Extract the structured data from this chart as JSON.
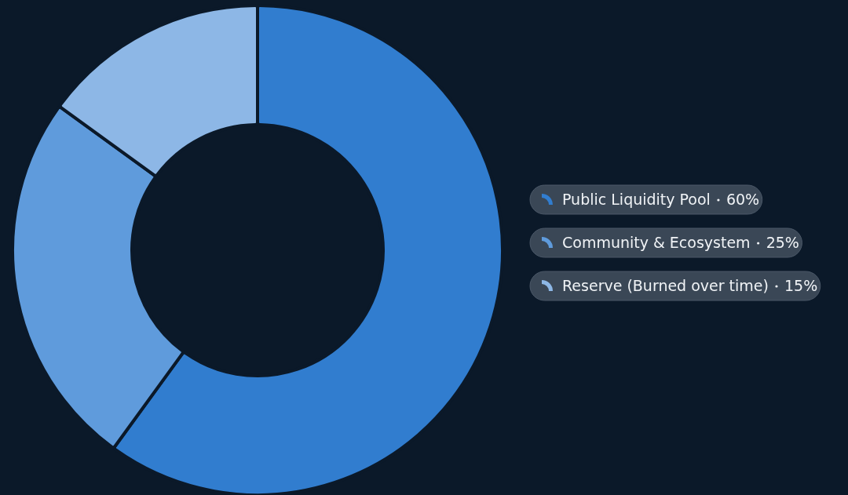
{
  "chart_data": {
    "type": "donut",
    "categories": [
      "Public Liquidity Pool",
      "Community & Ecosystem",
      "Reserve (Burned over time)"
    ],
    "values": [
      60,
      25,
      15
    ],
    "value_labels": [
      "60%",
      "25%",
      "15%"
    ],
    "colors": [
      "#317dcf",
      "#5f9bdc",
      "#8db7e6"
    ],
    "legend": "right"
  }
}
